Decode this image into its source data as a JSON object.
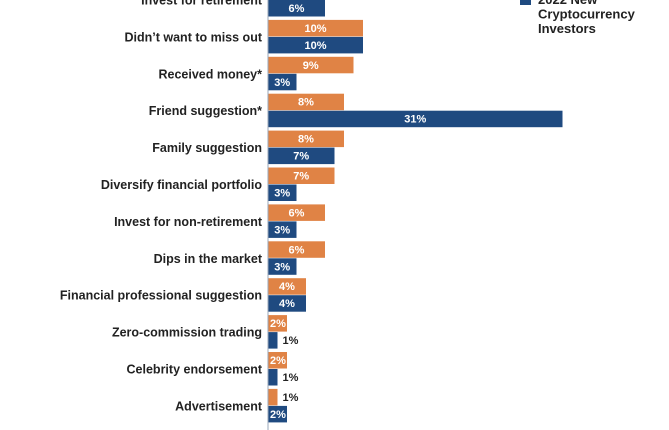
{
  "chart_data": {
    "type": "bar",
    "orientation": "horizontal",
    "categories": [
      "Invest for retirement",
      "Didn’t want to miss out",
      "Received money*",
      "Friend suggestion*",
      "Family suggestion",
      "Diversify financial portfolio",
      "Invest for non-retirement",
      "Dips in the market",
      "Financial professional suggestion",
      "Zero-commission trading",
      "Celebrity endorsement",
      "Advertisement"
    ],
    "series": [
      {
        "name": "",
        "color": "#E08345",
        "values": [
          null,
          10,
          9,
          8,
          8,
          7,
          6,
          6,
          4,
          2,
          2,
          1
        ]
      },
      {
        "name": "2022 New Cryptocurrency Investors",
        "color": "#1F4A80",
        "values": [
          6,
          10,
          3,
          31,
          7,
          3,
          3,
          3,
          4,
          1,
          1,
          2
        ]
      }
    ],
    "value_suffix": "%",
    "xlim": [
      0,
      33
    ],
    "grid": false,
    "legend_position": "top-right"
  }
}
